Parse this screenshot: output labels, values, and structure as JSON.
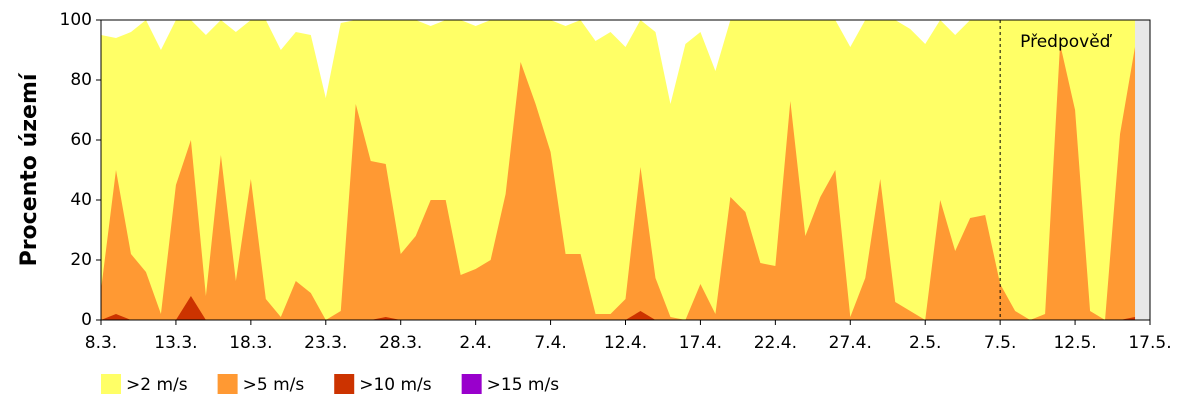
{
  "chart_data": {
    "type": "area",
    "y_label": "Procento území",
    "categories": [
      "8.3.",
      null,
      null,
      null,
      null,
      "13.3.",
      null,
      null,
      null,
      null,
      "18.3.",
      null,
      null,
      null,
      null,
      "23.3.",
      null,
      null,
      null,
      null,
      "28.3.",
      null,
      null,
      null,
      null,
      "2.4.",
      null,
      null,
      null,
      null,
      "7.4.",
      null,
      null,
      null,
      null,
      "12.4.",
      null,
      null,
      null,
      null,
      "17.4.",
      null,
      null,
      null,
      null,
      "22.4.",
      null,
      null,
      null,
      null,
      "27.4.",
      null,
      null,
      null,
      null,
      "2.5.",
      null,
      null,
      null,
      null,
      "7.5.",
      null,
      null,
      null,
      null,
      "12.5.",
      null,
      null,
      null,
      null,
      "17.5."
    ],
    "series": [
      {
        "name": ">2 m/s",
        "color": "#ffff66",
        "values": [
          95,
          94,
          96,
          100,
          90,
          100,
          100,
          95,
          100,
          96,
          100,
          100,
          90,
          96,
          95,
          74,
          99,
          100,
          100,
          100,
          100,
          100,
          98,
          100,
          100,
          98,
          100,
          100,
          100,
          100,
          100,
          98,
          100,
          93,
          96,
          91,
          100,
          96,
          72,
          92,
          96,
          83,
          100,
          100,
          100,
          100,
          100,
          100,
          100,
          100,
          91,
          100,
          100,
          100,
          97,
          92,
          100,
          95,
          100,
          100,
          100,
          100,
          100,
          100,
          100,
          100,
          100,
          100,
          100,
          100,
          null
        ]
      },
      {
        "name": ">5 m/s",
        "color": "#ff9933",
        "values": [
          10,
          50,
          22,
          16,
          2,
          45,
          60,
          8,
          55,
          13,
          47,
          7,
          1,
          13,
          9,
          0,
          3,
          72,
          53,
          52,
          22,
          28,
          40,
          40,
          15,
          17,
          20,
          42,
          86,
          72,
          56,
          22,
          22,
          2,
          2,
          7,
          51,
          14,
          1,
          0,
          12,
          2,
          41,
          36,
          19,
          18,
          73,
          28,
          41,
          50,
          1,
          14,
          47,
          6,
          3,
          0,
          40,
          23,
          34,
          35,
          12,
          3,
          0,
          2,
          92,
          70,
          3,
          0,
          62,
          91,
          null
        ]
      },
      {
        "name": ">10 m/s",
        "color": "#cc3300",
        "values": [
          0,
          2,
          0,
          0,
          0,
          0,
          8,
          0,
          0,
          0,
          0,
          0,
          0,
          0,
          0,
          0,
          0,
          0,
          0,
          1,
          0,
          0,
          0,
          0,
          0,
          0,
          0,
          0,
          0,
          0,
          0,
          0,
          0,
          0,
          0,
          0,
          3,
          0,
          0,
          0,
          0,
          0,
          0,
          0,
          0,
          0,
          0,
          0,
          0,
          0,
          0,
          0,
          0,
          0,
          0,
          0,
          0,
          0,
          0,
          0,
          0,
          0,
          0,
          0,
          0,
          0,
          0,
          0,
          0,
          1,
          null
        ]
      },
      {
        "name": ">15 m/s",
        "color": "#9900cc",
        "values": [
          0,
          0,
          0,
          0,
          0,
          0,
          0,
          0,
          0,
          0,
          0,
          0,
          0,
          0,
          0,
          0,
          0,
          0,
          0,
          0,
          0,
          0,
          0,
          0,
          0,
          0,
          0,
          0,
          0,
          0,
          0,
          0,
          0,
          0,
          0,
          0,
          0,
          0,
          0,
          0,
          0,
          0,
          0,
          0,
          0,
          0,
          0,
          0,
          0,
          0,
          0,
          0,
          0,
          0,
          0,
          0,
          0,
          0,
          0,
          0,
          0,
          0,
          0,
          0,
          0,
          0,
          0,
          0,
          0,
          0,
          null
        ]
      }
    ],
    "annotation": {
      "text": "Předpověď",
      "at": "7.5."
    },
    "ylim": [
      0,
      100
    ],
    "yticks": [
      0,
      20,
      40,
      60,
      80,
      100
    ],
    "legend": "bottom-left"
  }
}
